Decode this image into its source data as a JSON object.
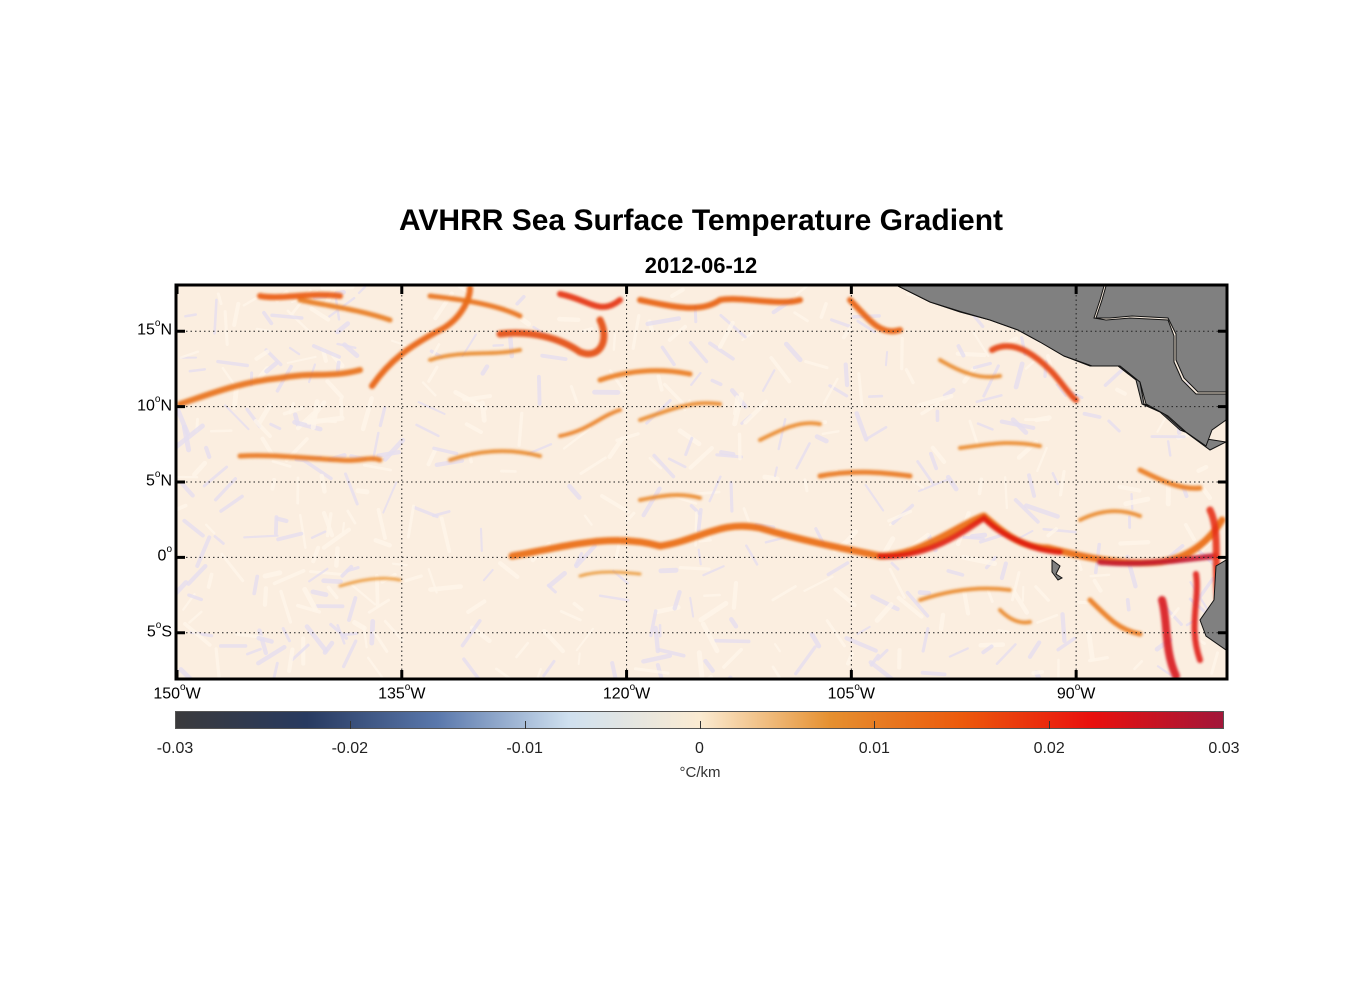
{
  "title": "AVHRR Sea Surface Temperature Gradient",
  "subtitle": "2012-06-12",
  "map": {
    "lon_range": [
      -150,
      -80
    ],
    "lat_range": [
      -8,
      18
    ],
    "land_color": "#808080",
    "grid": "dotted",
    "x_ticks": [
      {
        "deg": "150",
        "hemi": "W"
      },
      {
        "deg": "135",
        "hemi": "W"
      },
      {
        "deg": "120",
        "hemi": "W"
      },
      {
        "deg": "105",
        "hemi": "W"
      },
      {
        "deg": "90",
        "hemi": "W"
      }
    ],
    "y_ticks": [
      {
        "deg": "15",
        "hemi": "N"
      },
      {
        "deg": "10",
        "hemi": "N"
      },
      {
        "deg": "5",
        "hemi": "N"
      },
      {
        "deg": "0",
        "hemi": ""
      },
      {
        "deg": "5",
        "hemi": "S"
      }
    ]
  },
  "colorbar": {
    "ticks": [
      "-0.03",
      "-0.02",
      "-0.01",
      "0",
      "0.01",
      "0.02",
      "0.03"
    ],
    "unit": "°C/km",
    "colors": [
      "#3a3a3c",
      "#283a60",
      "#5a78ac",
      "#cfe0ef",
      "#fbebd2",
      "#e59030",
      "#ec5a0c",
      "#e9100e",
      "#a2173a"
    ]
  }
}
